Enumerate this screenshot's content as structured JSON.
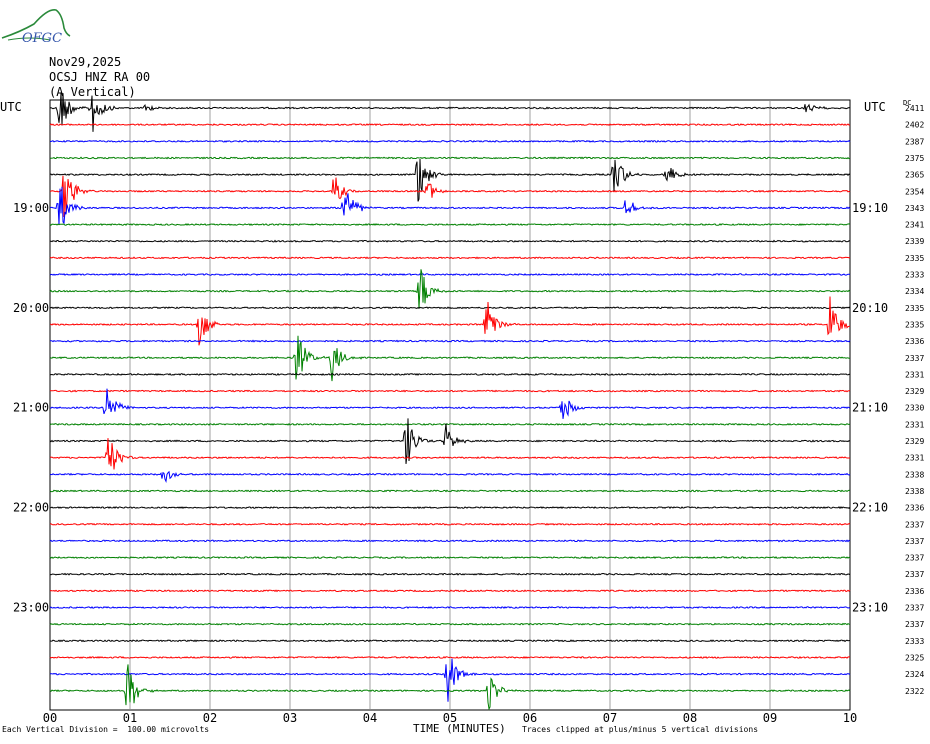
{
  "header": {
    "logo_text": "OFGC",
    "date": "Nov29,2025",
    "station": "OCSJ HNZ RA 00",
    "component": "(A Vertical)",
    "utc_left": "UTC",
    "utc_right": "UTC",
    "dc_label": "DC"
  },
  "footer": {
    "scale_note": "Each Vertical Division =  100.00 microvolts",
    "xlabel": "TIME (MINUTES)",
    "clip_note": "Traces clipped at plus/minus 5 vertical divisions"
  },
  "colors": {
    "trace_cycle": [
      "#000000",
      "#ff0000",
      "#0000ff",
      "#008000"
    ],
    "grid": "#888888",
    "logo": "#2a8a3a"
  },
  "chart_data": {
    "type": "helicorder",
    "xlabel": "TIME (MINUTES)",
    "xlim": [
      0,
      10
    ],
    "x_ticks": [
      "00",
      "01",
      "02",
      "03",
      "04",
      "05",
      "06",
      "07",
      "08",
      "09",
      "10"
    ],
    "left_time_labels": [
      {
        "row": 6,
        "label": "19:00"
      },
      {
        "row": 12,
        "label": "20:00"
      },
      {
        "row": 18,
        "label": "21:00"
      },
      {
        "row": 24,
        "label": "22:00"
      },
      {
        "row": 30,
        "label": "23:00"
      }
    ],
    "right_time_labels": [
      {
        "row": 6,
        "label": "19:10"
      },
      {
        "row": 12,
        "label": "20:10"
      },
      {
        "row": 18,
        "label": "21:10"
      },
      {
        "row": 24,
        "label": "22:10"
      },
      {
        "row": 30,
        "label": "23:10"
      }
    ],
    "dc_offsets": [
      2411,
      2402,
      2387,
      2375,
      2365,
      2354,
      2343,
      2341,
      2339,
      2335,
      2333,
      2334,
      2335,
      2335,
      2336,
      2337,
      2331,
      2329,
      2330,
      2331,
      2329,
      2331,
      2338,
      2338,
      2336,
      2337,
      2337,
      2337,
      2337,
      2336,
      2337,
      2337,
      2333,
      2325,
      2324,
      2322
    ],
    "events": [
      {
        "row": 0,
        "minute": 0.12,
        "amp": 1.0
      },
      {
        "row": 0,
        "minute": 0.52,
        "amp": 1.0
      },
      {
        "row": 0,
        "minute": 1.2,
        "amp": 0.15
      },
      {
        "row": 0,
        "minute": 9.45,
        "amp": 0.2
      },
      {
        "row": 4,
        "minute": 4.6,
        "amp": 1.0
      },
      {
        "row": 4,
        "minute": 7.05,
        "amp": 0.9
      },
      {
        "row": 4,
        "minute": 7.7,
        "amp": 0.45
      },
      {
        "row": 5,
        "minute": 0.18,
        "amp": 1.0
      },
      {
        "row": 5,
        "minute": 3.55,
        "amp": 0.6
      },
      {
        "row": 5,
        "minute": 4.72,
        "amp": 0.4
      },
      {
        "row": 6,
        "minute": 0.12,
        "amp": 1.0
      },
      {
        "row": 6,
        "minute": 3.68,
        "amp": 1.0
      },
      {
        "row": 6,
        "minute": 7.2,
        "amp": 0.4
      },
      {
        "row": 11,
        "minute": 4.62,
        "amp": 1.0
      },
      {
        "row": 13,
        "minute": 1.87,
        "amp": 0.9
      },
      {
        "row": 13,
        "minute": 5.45,
        "amp": 1.0
      },
      {
        "row": 13,
        "minute": 9.75,
        "amp": 1.0
      },
      {
        "row": 15,
        "minute": 3.08,
        "amp": 1.0
      },
      {
        "row": 15,
        "minute": 3.52,
        "amp": 0.8
      },
      {
        "row": 18,
        "minute": 0.7,
        "amp": 1.0
      },
      {
        "row": 18,
        "minute": 6.4,
        "amp": 0.6
      },
      {
        "row": 20,
        "minute": 4.45,
        "amp": 1.0
      },
      {
        "row": 20,
        "minute": 4.95,
        "amp": 0.55
      },
      {
        "row": 21,
        "minute": 0.72,
        "amp": 1.0
      },
      {
        "row": 22,
        "minute": 1.42,
        "amp": 0.35
      },
      {
        "row": 34,
        "minute": 4.97,
        "amp": 1.0
      },
      {
        "row": 35,
        "minute": 0.97,
        "amp": 1.0
      },
      {
        "row": 35,
        "minute": 5.48,
        "amp": 0.7
      }
    ]
  }
}
